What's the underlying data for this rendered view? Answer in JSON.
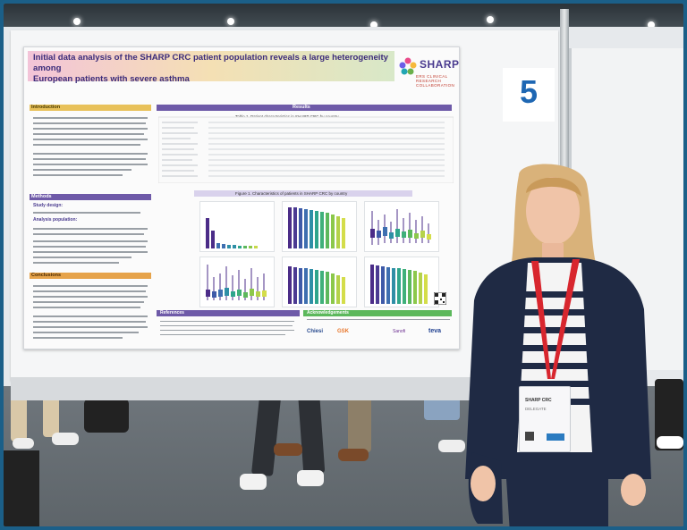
{
  "poster": {
    "title_line1": "Initial data analysis of the SHARP CRC patient population reveals a large heterogeneity among",
    "title_line2": "European patients with severe asthma",
    "logo_word": "SHARP",
    "logo_sub": "ERS CLINICAL RESEARCH COLLABORATION",
    "section_intro": "Introduction",
    "section_methods": "Methods",
    "section_conclusions": "Conclusions",
    "section_results": "Results",
    "section_references": "References",
    "section_acknowledgements": "Acknowledgements",
    "table_title": "Table 1. Patient characteristics in SHARP CRC by country",
    "figure_title": "Figure 1. Characteristics of patients in SHARP CRC by country",
    "methods_study_design": "Study design:",
    "methods_analysis_population": "Analysis population:"
  },
  "sponsors": [
    "Chiesi",
    "GSK",
    "Sanofi",
    "teva"
  ],
  "booth_number": "5",
  "badge": {
    "lines": [
      "SHARP CRC",
      "DELEGATE"
    ]
  },
  "colors": {
    "frame": "#1b5f88",
    "poster_title_band": "#f3c4d8",
    "section_purple": "#6e5aa8",
    "section_yellow": "#e8c15a",
    "section_orange": "#e6a34a",
    "number_blue": "#1e67b3",
    "lanyard": "#d8262e",
    "cardigan": "#1f2a44"
  }
}
